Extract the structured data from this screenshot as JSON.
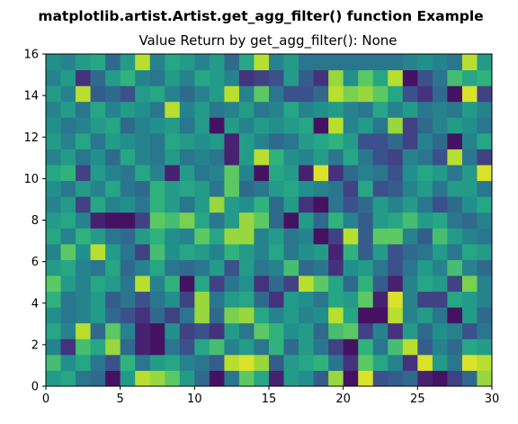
{
  "figure": {
    "suptitle": "matplotlib.artist.Artist.get_agg_filter() function Example"
  },
  "chart_data": {
    "type": "heatmap",
    "title": "Value Return by get_agg_filter(): None",
    "xlabel": "",
    "ylabel": "",
    "xlim": [
      0,
      30
    ],
    "ylim": [
      0,
      16
    ],
    "x_ticks": [
      0,
      5,
      10,
      15,
      20,
      25,
      30
    ],
    "y_ticks": [
      0,
      2,
      4,
      6,
      8,
      10,
      12,
      14,
      16
    ],
    "colormap": "viridis",
    "value_range": [
      0,
      1
    ],
    "grid": false,
    "legend": "none",
    "rows_bottom_to_top": [
      [
        0.55,
        0.6,
        0.4,
        0.35,
        0.05,
        0.55,
        0.9,
        0.85,
        0.75,
        0.55,
        0.35,
        0.05,
        0.4,
        0.75,
        0.6,
        0.1,
        0.55,
        0.5,
        0.3,
        0.85,
        0.05,
        0.95,
        0.25,
        0.3,
        0.35,
        0.1,
        0.05,
        0.2,
        0.35,
        0.85
      ],
      [
        0.7,
        0.5,
        0.6,
        0.4,
        0.25,
        0.65,
        0.4,
        0.55,
        0.6,
        0.45,
        0.4,
        0.3,
        0.9,
        0.95,
        0.85,
        0.3,
        0.55,
        0.6,
        0.65,
        0.4,
        0.15,
        0.75,
        0.6,
        0.45,
        0.15,
        0.95,
        0.55,
        0.4,
        0.95,
        0.9
      ],
      [
        0.45,
        0.15,
        0.7,
        0.6,
        0.85,
        0.35,
        0.1,
        0.05,
        0.4,
        0.25,
        0.6,
        0.7,
        0.45,
        0.55,
        0.4,
        0.65,
        0.35,
        0.55,
        0.4,
        0.2,
        0.05,
        0.65,
        0.4,
        0.7,
        0.9,
        0.3,
        0.45,
        0.35,
        0.6,
        0.55
      ],
      [
        0.6,
        0.45,
        0.9,
        0.35,
        0.75,
        0.45,
        0.1,
        0.05,
        0.5,
        0.2,
        0.25,
        0.15,
        0.55,
        0.4,
        0.75,
        0.65,
        0.5,
        0.55,
        0.35,
        0.7,
        0.75,
        0.2,
        0.45,
        0.15,
        0.55,
        0.35,
        0.5,
        0.45,
        0.25,
        0.4
      ],
      [
        0.5,
        0.4,
        0.45,
        0.55,
        0.35,
        0.25,
        0.15,
        0.35,
        0.2,
        0.4,
        0.85,
        0.35,
        0.8,
        0.85,
        0.6,
        0.45,
        0.55,
        0.45,
        0.5,
        0.9,
        0.6,
        0.05,
        0.05,
        0.9,
        0.45,
        0.55,
        0.4,
        0.05,
        0.55,
        0.35
      ],
      [
        0.65,
        0.4,
        0.45,
        0.55,
        0.3,
        0.4,
        0.25,
        0.4,
        0.5,
        0.2,
        0.85,
        0.4,
        0.55,
        0.6,
        0.35,
        0.15,
        0.55,
        0.5,
        0.4,
        0.6,
        0.55,
        0.75,
        0.1,
        0.95,
        0.45,
        0.2,
        0.2,
        0.6,
        0.55,
        0.45
      ],
      [
        0.75,
        0.55,
        0.45,
        0.6,
        0.55,
        0.4,
        0.9,
        0.45,
        0.65,
        0.05,
        0.6,
        0.2,
        0.4,
        0.5,
        0.15,
        0.35,
        0.2,
        0.9,
        0.75,
        0.6,
        0.35,
        0.65,
        0.3,
        0.1,
        0.45,
        0.6,
        0.55,
        0.2,
        0.8,
        0.45
      ],
      [
        0.55,
        0.6,
        0.45,
        0.4,
        0.6,
        0.35,
        0.45,
        0.6,
        0.4,
        0.35,
        0.4,
        0.55,
        0.25,
        0.55,
        0.4,
        0.45,
        0.7,
        0.35,
        0.4,
        0.15,
        0.5,
        0.55,
        0.4,
        0.25,
        0.4,
        0.55,
        0.45,
        0.7,
        0.45,
        0.35
      ],
      [
        0.45,
        0.75,
        0.5,
        0.9,
        0.55,
        0.4,
        0.2,
        0.7,
        0.5,
        0.6,
        0.55,
        0.45,
        0.65,
        0.55,
        0.45,
        0.6,
        0.4,
        0.5,
        0.55,
        0.1,
        0.65,
        0.3,
        0.55,
        0.25,
        0.35,
        0.4,
        0.55,
        0.4,
        0.6,
        0.55
      ],
      [
        0.6,
        0.45,
        0.65,
        0.55,
        0.4,
        0.35,
        0.55,
        0.65,
        0.5,
        0.45,
        0.75,
        0.6,
        0.85,
        0.85,
        0.45,
        0.55,
        0.4,
        0.45,
        0.05,
        0.2,
        0.9,
        0.3,
        0.75,
        0.75,
        0.45,
        0.3,
        0.7,
        0.55,
        0.45,
        0.4
      ],
      [
        0.55,
        0.6,
        0.45,
        0.1,
        0.05,
        0.05,
        0.2,
        0.75,
        0.7,
        0.8,
        0.6,
        0.4,
        0.55,
        0.85,
        0.75,
        0.35,
        0.05,
        0.55,
        0.35,
        0.65,
        0.45,
        0.3,
        0.55,
        0.6,
        0.7,
        0.55,
        0.6,
        0.4,
        0.35,
        0.45
      ],
      [
        0.45,
        0.55,
        0.2,
        0.6,
        0.45,
        0.5,
        0.4,
        0.65,
        0.55,
        0.4,
        0.55,
        0.85,
        0.55,
        0.5,
        0.65,
        0.35,
        0.55,
        0.15,
        0.05,
        0.4,
        0.25,
        0.35,
        0.55,
        0.45,
        0.55,
        0.4,
        0.25,
        0.35,
        0.5,
        0.6
      ],
      [
        0.5,
        0.4,
        0.55,
        0.45,
        0.6,
        0.4,
        0.35,
        0.65,
        0.55,
        0.6,
        0.55,
        0.4,
        0.75,
        0.35,
        0.4,
        0.55,
        0.6,
        0.5,
        0.45,
        0.4,
        0.2,
        0.6,
        0.25,
        0.3,
        0.45,
        0.55,
        0.4,
        0.55,
        0.55,
        0.4
      ],
      [
        0.6,
        0.65,
        0.2,
        0.55,
        0.45,
        0.4,
        0.6,
        0.45,
        0.1,
        0.55,
        0.4,
        0.45,
        0.75,
        0.45,
        0.05,
        0.6,
        0.55,
        0.1,
        0.95,
        0.15,
        0.35,
        0.45,
        0.4,
        0.25,
        0.5,
        0.6,
        0.55,
        0.4,
        0.55,
        0.95
      ],
      [
        0.45,
        0.55,
        0.4,
        0.5,
        0.35,
        0.6,
        0.45,
        0.4,
        0.55,
        0.4,
        0.45,
        0.4,
        0.1,
        0.55,
        0.9,
        0.65,
        0.5,
        0.45,
        0.55,
        0.4,
        0.6,
        0.4,
        0.25,
        0.2,
        0.45,
        0.4,
        0.25,
        0.9,
        0.4,
        0.2
      ],
      [
        0.55,
        0.45,
        0.6,
        0.4,
        0.55,
        0.5,
        0.45,
        0.4,
        0.6,
        0.55,
        0.5,
        0.55,
        0.1,
        0.55,
        0.45,
        0.35,
        0.4,
        0.55,
        0.6,
        0.65,
        0.55,
        0.25,
        0.25,
        0.35,
        0.2,
        0.45,
        0.35,
        0.05,
        0.45,
        0.6
      ],
      [
        0.5,
        0.4,
        0.45,
        0.55,
        0.6,
        0.35,
        0.45,
        0.5,
        0.55,
        0.4,
        0.55,
        0.05,
        0.55,
        0.45,
        0.55,
        0.5,
        0.55,
        0.6,
        0.05,
        0.9,
        0.45,
        0.55,
        0.4,
        0.85,
        0.2,
        0.35,
        0.45,
        0.55,
        0.5,
        0.4
      ],
      [
        0.45,
        0.55,
        0.4,
        0.6,
        0.45,
        0.55,
        0.5,
        0.4,
        0.9,
        0.45,
        0.55,
        0.4,
        0.45,
        0.55,
        0.4,
        0.45,
        0.6,
        0.45,
        0.5,
        0.55,
        0.45,
        0.4,
        0.6,
        0.45,
        0.55,
        0.4,
        0.45,
        0.4,
        0.55,
        0.45
      ],
      [
        0.55,
        0.45,
        0.9,
        0.3,
        0.35,
        0.25,
        0.55,
        0.6,
        0.45,
        0.35,
        0.45,
        0.55,
        0.9,
        0.45,
        0.75,
        0.4,
        0.25,
        0.25,
        0.35,
        0.9,
        0.8,
        0.85,
        0.75,
        0.6,
        0.25,
        0.15,
        0.35,
        0.05,
        0.95,
        0.2
      ],
      [
        0.45,
        0.55,
        0.15,
        0.35,
        0.55,
        0.65,
        0.45,
        0.4,
        0.55,
        0.45,
        0.6,
        0.55,
        0.45,
        0.15,
        0.2,
        0.25,
        0.55,
        0.3,
        0.15,
        0.85,
        0.5,
        0.75,
        0.6,
        0.9,
        0.05,
        0.25,
        0.4,
        0.7,
        0.6,
        0.65
      ],
      [
        0.5,
        0.45,
        0.55,
        0.6,
        0.35,
        0.55,
        0.9,
        0.45,
        0.6,
        0.55,
        0.45,
        0.55,
        0.35,
        0.6,
        0.9,
        0.45,
        0.55,
        0.4,
        0.4,
        0.4,
        0.4,
        0.4,
        0.4,
        0.4,
        0.45,
        0.5,
        0.45,
        0.4,
        0.9,
        0.55
      ]
    ]
  }
}
